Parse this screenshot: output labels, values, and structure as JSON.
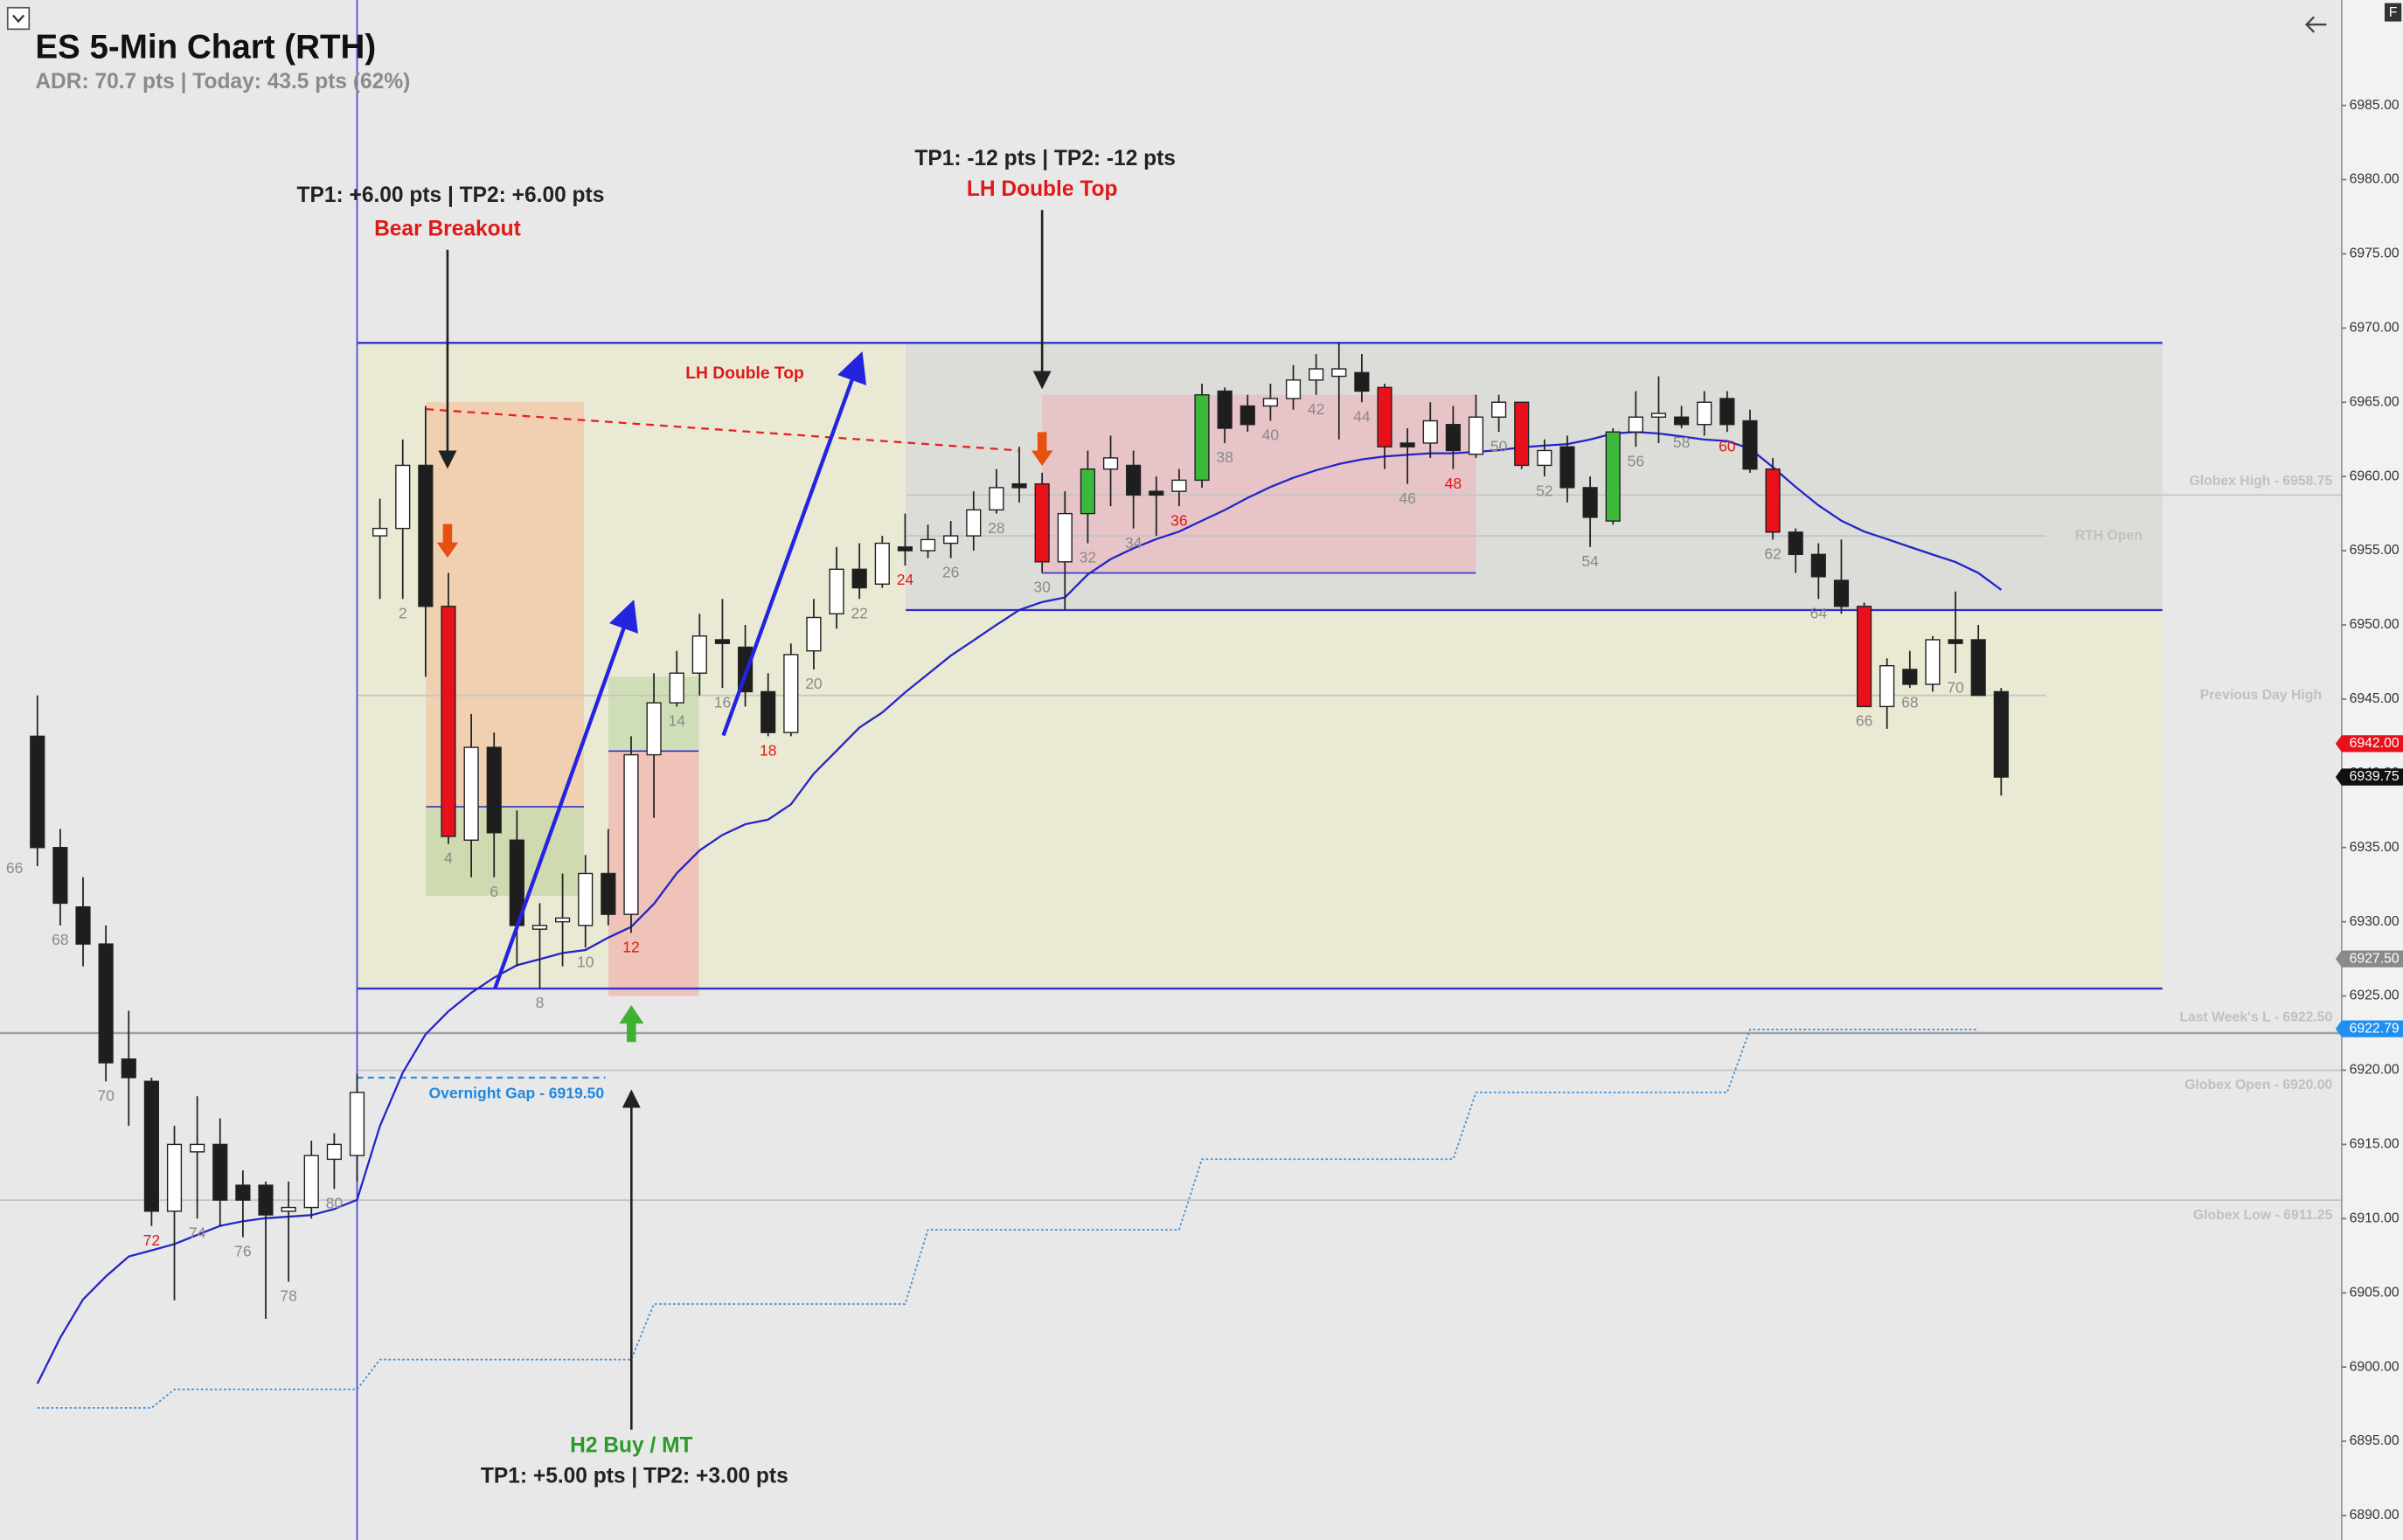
{
  "chart_data": {
    "type": "candlestick",
    "title": "ES 5-Min Chart (RTH)",
    "subtitle": "ADR: 70.7 pts | Today: 43.5 pts (62%)",
    "corner_label": "F",
    "categories": [
      "66",
      null,
      "68",
      null,
      "70",
      null,
      "72",
      null,
      "74",
      null,
      "76",
      null,
      "78",
      null,
      "80",
      null,
      null,
      "2",
      null,
      "4",
      null,
      "6",
      null,
      "8",
      null,
      "10",
      null,
      "12",
      null,
      "14",
      null,
      "16",
      null,
      "18",
      null,
      "20",
      null,
      "22",
      null,
      "24",
      null,
      "26",
      null,
      "28",
      null,
      "30",
      null,
      "32",
      null,
      "34",
      null,
      "36",
      null,
      "38",
      null,
      "40",
      null,
      "42",
      null,
      "44",
      null,
      "46",
      null,
      "48",
      null,
      "50",
      null,
      "52",
      null,
      "54",
      null,
      "56",
      null,
      "58",
      null,
      "60",
      null,
      "62",
      null,
      "64",
      null,
      "66",
      null,
      "68",
      null,
      "70",
      null,
      null
    ],
    "open": [
      null,
      6942.5,
      6935.0,
      6931.0,
      6928.5,
      6920.75,
      6919.25,
      6910.5,
      6914.5,
      6915.0,
      6912.25,
      6912.25,
      6910.5,
      6910.75,
      6914.0,
      6914.25,
      6956.0,
      6956.5,
      6960.75,
      6951.25,
      6935.5,
      6941.75,
      6935.5,
      6929.5,
      6930.0,
      6929.75,
      6933.25,
      6930.5,
      6941.25,
      6944.75,
      6946.75,
      6949.0,
      6948.5,
      6945.5,
      6942.75,
      6948.25,
      6950.75,
      6953.75,
      6952.75,
      6955.25,
      6955.0,
      6955.5,
      6956.0,
      6957.75,
      6959.5,
      6959.5,
      6954.25,
      6957.5,
      6960.5,
      6960.75,
      6959.0,
      6959.0,
      6959.75,
      6965.75,
      6964.75,
      6964.75,
      6965.25,
      6966.5,
      6966.75,
      6967.0,
      6966.0,
      6962.25,
      6962.25,
      6963.5,
      6961.5,
      6964.0,
      6965.0,
      6960.75,
      6962.0,
      6959.25,
      6957.0,
      6963.0,
      6964.0,
      6964.0,
      6963.5,
      6965.25,
      6963.75,
      6960.5,
      6956.25,
      6954.75,
      6953.0,
      6951.25,
      6944.5,
      6947.0,
      6946.0,
      6949.0,
      6949.0,
      6945.5
    ],
    "high": [
      null,
      6945.25,
      6936.25,
      6933.0,
      6929.75,
      6924.0,
      6919.5,
      6916.25,
      6918.25,
      6916.75,
      6913.25,
      6912.5,
      6912.5,
      6915.25,
      6915.75,
      6919.75,
      6958.5,
      6962.5,
      6964.75,
      6953.5,
      6944.0,
      6942.75,
      6937.5,
      6931.25,
      6933.25,
      6934.5,
      6936.25,
      6942.5,
      6946.75,
      6948.25,
      6950.75,
      6951.75,
      6950.0,
      6946.75,
      6948.75,
      6951.75,
      6955.25,
      6955.5,
      6956.0,
      6957.5,
      6956.75,
      6957.0,
      6959.0,
      6960.5,
      6962.0,
      6960.25,
      6959.0,
      6961.75,
      6962.75,
      6961.75,
      6960.0,
      6960.5,
      6966.25,
      6966.0,
      6965.5,
      6966.25,
      6967.5,
      6968.25,
      6969.0,
      6968.25,
      6966.25,
      6963.25,
      6965.0,
      6964.75,
      6965.5,
      6965.5,
      6965.0,
      6962.5,
      6962.75,
      6960.0,
      6963.25,
      6965.75,
      6966.75,
      6964.75,
      6965.75,
      6965.75,
      6964.5,
      6961.25,
      6956.5,
      6955.5,
      6955.75,
      6951.5,
      6947.75,
      6948.25,
      6949.25,
      6952.25,
      6950.0,
      6945.75
    ],
    "low": [
      null,
      6933.75,
      6929.75,
      6927.0,
      6919.25,
      6916.25,
      6909.5,
      6904.5,
      6910.0,
      6909.5,
      6908.75,
      6903.25,
      6905.75,
      6910.0,
      6912.0,
      6912.5,
      6951.75,
      6951.75,
      6946.5,
      6935.25,
      6933.0,
      6933.0,
      6927.0,
      6925.5,
      6927.0,
      6928.25,
      6929.75,
      6929.25,
      6937.0,
      6944.5,
      6945.25,
      6945.75,
      6944.5,
      6942.5,
      6942.5,
      6947.0,
      6949.75,
      6951.75,
      6952.5,
      6954.0,
      6954.5,
      6954.5,
      6955.0,
      6957.5,
      6958.25,
      6953.5,
      6951.0,
      6955.5,
      6958.0,
      6956.5,
      6956.0,
      6958.0,
      6959.25,
      6962.25,
      6963.0,
      6963.75,
      6964.5,
      6965.5,
      6962.5,
      6965.0,
      6960.5,
      6959.5,
      6961.25,
      6960.5,
      6961.25,
      6963.0,
      6960.5,
      6960.0,
      6958.25,
      6955.25,
      6956.75,
      6962.0,
      6962.25,
      6963.25,
      6962.75,
      6963.0,
      6960.25,
      6955.75,
      6953.5,
      6951.75,
      6950.75,
      6944.5,
      6943.0,
      6945.75,
      6945.5,
      6946.75,
      6945.25,
      6938.5
    ],
    "close": [
      null,
      6935.0,
      6931.25,
      6928.5,
      6920.5,
      6919.5,
      6910.5,
      6915.0,
      6915.0,
      6911.25,
      6911.25,
      6910.25,
      6910.75,
      6914.25,
      6915.0,
      6918.5,
      6956.5,
      6960.75,
      6951.25,
      6935.75,
      6941.75,
      6936.0,
      6929.75,
      6929.75,
      6930.25,
      6933.25,
      6930.5,
      6941.25,
      6944.75,
      6946.75,
      6949.25,
      6948.75,
      6945.5,
      6942.75,
      6948.0,
      6950.5,
      6953.75,
      6952.5,
      6955.5,
      6955.0,
      6955.75,
      6956.0,
      6957.75,
      6959.25,
      6959.25,
      6954.25,
      6957.5,
      6960.5,
      6961.25,
      6958.75,
      6958.75,
      6959.75,
      6965.5,
      6963.25,
      6963.5,
      6965.25,
      6966.5,
      6967.25,
      6967.25,
      6965.75,
      6962.0,
      6962.0,
      6963.75,
      6961.75,
      6964.0,
      6965.0,
      6960.75,
      6961.75,
      6959.25,
      6957.25,
      6963.0,
      6964.0,
      6964.25,
      6963.5,
      6965.0,
      6963.5,
      6960.5,
      6956.25,
      6954.75,
      6953.25,
      6951.25,
      6944.5,
      6947.25,
      6946.0,
      6949.0,
      6948.75,
      6945.25,
      6939.75
    ],
    "ema": [
      null,
      6898.88,
      6901.98,
      6904.56,
      6906.11,
      6907.45,
      6907.86,
      6908.28,
      6908.9,
      6909.51,
      6909.82,
      6910.03,
      6910.13,
      6910.24,
      6910.65,
      6911.27,
      6916.23,
      6919.84,
      6922.42,
      6923.97,
      6925.21,
      6926.24,
      6927.07,
      6927.48,
      6927.9,
      6928.1,
      6928.93,
      6929.65,
      6931.2,
      6933.27,
      6934.81,
      6935.85,
      6936.57,
      6936.88,
      6937.91,
      6939.98,
      6941.53,
      6943.08,
      6944.1,
      6945.45,
      6946.69,
      6947.93,
      6948.96,
      6950.0,
      6951.0,
      6951.54,
      6951.85,
      6953.4,
      6954.43,
      6955.16,
      6955.78,
      6956.29,
      6957.02,
      6957.74,
      6958.56,
      6959.29,
      6959.91,
      6960.42,
      6960.84,
      6961.15,
      6961.35,
      6961.46,
      6961.56,
      6961.56,
      6961.66,
      6961.77,
      6961.97,
      6962.08,
      6962.18,
      6962.49,
      6962.9,
      6963.0,
      6962.9,
      6962.7,
      6962.49,
      6962.39,
      6961.87,
      6960.63,
      6959.29,
      6958.05,
      6957.02,
      6956.29,
      6955.78,
      6955.26,
      6954.74,
      6954.23,
      6953.5,
      6952.37
    ],
    "step_line": [
      null,
      6897.25,
      6897.25,
      6897.25,
      6897.25,
      6897.25,
      6897.25,
      6898.5,
      6898.5,
      6898.5,
      6898.5,
      6898.5,
      6898.5,
      6898.5,
      6898.5,
      6898.5,
      6900.5,
      6900.5,
      6900.5,
      6900.5,
      6900.5,
      6900.5,
      6900.5,
      6900.5,
      6900.5,
      6900.5,
      6900.5,
      6900.5,
      6904.25,
      6904.25,
      6904.25,
      6904.25,
      6904.25,
      6904.25,
      6904.25,
      6904.25,
      6904.25,
      6904.25,
      6904.25,
      6904.25,
      6909.25,
      6909.25,
      6909.25,
      6909.25,
      6909.25,
      6909.25,
      6909.25,
      6909.25,
      6909.25,
      6909.25,
      6909.25,
      6909.25,
      6914.0,
      6914.0,
      6914.0,
      6914.0,
      6914.0,
      6914.0,
      6914.0,
      6914.0,
      6914.0,
      6914.0,
      6914.0,
      6914.0,
      6918.5,
      6918.5,
      6918.5,
      6918.5,
      6918.5,
      6918.5,
      6918.5,
      6918.5,
      6918.5,
      6918.5,
      6918.5,
      6918.5,
      6922.75,
      6922.75,
      6922.75,
      6922.75,
      6922.75,
      6922.75,
      6922.75,
      6922.75,
      6922.75,
      6922.75,
      6922.75,
      null
    ],
    "red_candles": [
      19,
      45,
      60,
      66,
      77,
      81
    ],
    "green_candles": [
      47,
      52,
      70
    ],
    "red_labels": [
      6,
      27,
      33,
      39,
      51,
      63,
      75
    ],
    "up_color": "#ffffff",
    "down_color": "#1e1e1e",
    "red_color": "#e8101a",
    "green_color": "#3cb83c",
    "ema_color": "#2424c8",
    "step_color": "#3a8fdc",
    "line_color": "#3030c8",
    "ylim": [
      6888.35,
      6992.1
    ],
    "yticks": [
      {
        "value": 6890,
        "label": "6890.00"
      },
      {
        "value": 6895,
        "label": "6895.00"
      },
      {
        "value": 6900,
        "label": "6900.00"
      },
      {
        "value": 6905,
        "label": "6905.00"
      },
      {
        "value": 6910,
        "label": "6910.00"
      },
      {
        "value": 6915,
        "label": "6915.00"
      },
      {
        "value": 6920,
        "label": "6920.00"
      },
      {
        "value": 6925,
        "label": "6925.00"
      },
      {
        "value": 6930,
        "label": "6930.00"
      },
      {
        "value": 6935,
        "label": "6935.00"
      },
      {
        "value": 6940,
        "label": "6940.00"
      },
      {
        "value": 6945,
        "label": "6945.00"
      },
      {
        "value": 6950,
        "label": "6950.00"
      },
      {
        "value": 6955,
        "label": "6955.00"
      },
      {
        "value": 6960,
        "label": "6960.00"
      },
      {
        "value": 6965,
        "label": "6965.00"
      },
      {
        "value": 6970,
        "label": "6970.00"
      },
      {
        "value": 6975,
        "label": "6975.00"
      },
      {
        "value": 6980,
        "label": "6980.00"
      },
      {
        "value": 6985,
        "label": "6985.00"
      }
    ],
    "zones": [
      {
        "top": 6969.0,
        "bottom": 6925.5,
        "color": "#e9e9d4"
      },
      {
        "top": 6969.0,
        "bottom": 6951.0,
        "color": "#dcdcd8"
      },
      {
        "top": 6965.0,
        "bottom": 6931.75,
        "color": "#f1cbaa"
      },
      {
        "top": 6937.75,
        "bottom": 6931.75,
        "color": "#cadcb2"
      },
      {
        "top": 6946.5,
        "bottom": 6941.5,
        "color": "#cadcb2"
      },
      {
        "top": 6941.5,
        "bottom": 6925.0,
        "color": "#f0bcb2"
      },
      {
        "top": 6965.5,
        "bottom": 6953.5,
        "color": "#e8c0c4"
      }
    ],
    "blue_lines": [
      6969.0,
      6951.0,
      6925.5,
      6937.75,
      6941.5,
      6953.5
    ],
    "overnight_gap": 6919.5,
    "levels": [
      {
        "label": "Globex High - 6958.75",
        "value": 6958.75
      },
      {
        "label": "RTH Open",
        "value": 6956.0
      },
      {
        "label": "Previous Day High",
        "value": 6945.25
      },
      {
        "label": "Last Week's L - 6922.50",
        "value": 6922.5
      },
      {
        "label": "Globex Open - 6920.00",
        "value": 6920.0
      },
      {
        "label": "Globex Low - 6911.25",
        "value": 6911.25
      }
    ],
    "price_tags": [
      {
        "value": 6942.0,
        "label": "6942.00",
        "color": "#e8101a"
      },
      {
        "value": 6939.75,
        "label": "6939.75",
        "color": "#111111"
      },
      {
        "value": 6927.5,
        "label": "6927.50",
        "color": "#8a8a8a"
      },
      {
        "value": 6922.79,
        "label": "6922.79",
        "color": "#2090f0"
      }
    ],
    "annotations": {
      "bear_tp": "TP1: +6.00 pts | TP2: +6.00 pts",
      "bear_signal": "Bear Breakout",
      "lh_tp": "TP1: -12 pts | TP2: -12 pts",
      "lh_signal": "LH Double Top",
      "lh_small": "LH Double Top",
      "gap": "Overnight Gap - 6919.50",
      "h2_signal": "H2 Buy / MT",
      "h2_tp": "TP1: +5.00 pts | TP2: +3.00 pts"
    }
  }
}
